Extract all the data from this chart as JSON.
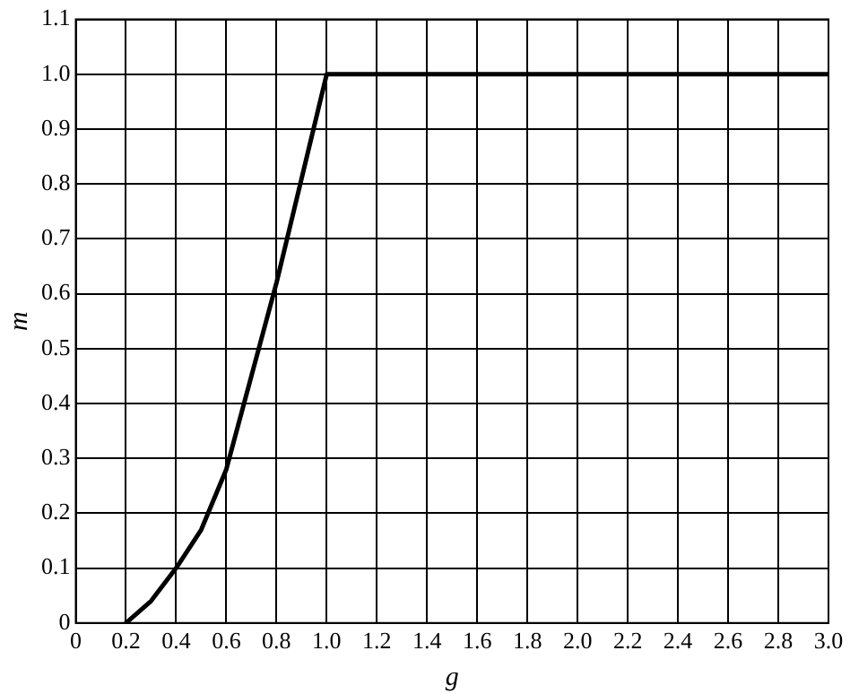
{
  "chart_data": {
    "type": "line",
    "xlabel": "g",
    "ylabel": "m",
    "series": [
      {
        "color": "#000000",
        "x": [
          0.2,
          0.3,
          0.4,
          0.5,
          0.6,
          0.7,
          0.8,
          0.9,
          1.0,
          3.0
        ],
        "values": [
          0,
          0.04,
          0.1,
          0.17,
          0.28,
          0.45,
          0.62,
          0.81,
          1.0,
          1.0
        ]
      }
    ],
    "xlim": [
      0,
      3
    ],
    "xticks": [
      0,
      0.2,
      0.4,
      0.6,
      0.8,
      {
        "value": 1,
        "label": "1.0"
      },
      1.2,
      1.4,
      1.6,
      1.8,
      {
        "value": 2,
        "label": "2.0"
      },
      2.2,
      2.4,
      2.6,
      2.8,
      {
        "value": 3,
        "label": "3.0"
      }
    ],
    "ylim": [
      0,
      1.1
    ],
    "yticks": [
      0,
      0.1,
      0.2,
      0.3,
      0.4,
      0.5,
      0.6,
      0.7,
      0.8,
      0.9,
      {
        "value": 1,
        "label": "1.0"
      },
      1.1
    ],
    "grid": true,
    "legend": false,
    "marker": "none",
    "line_style": "solid"
  }
}
